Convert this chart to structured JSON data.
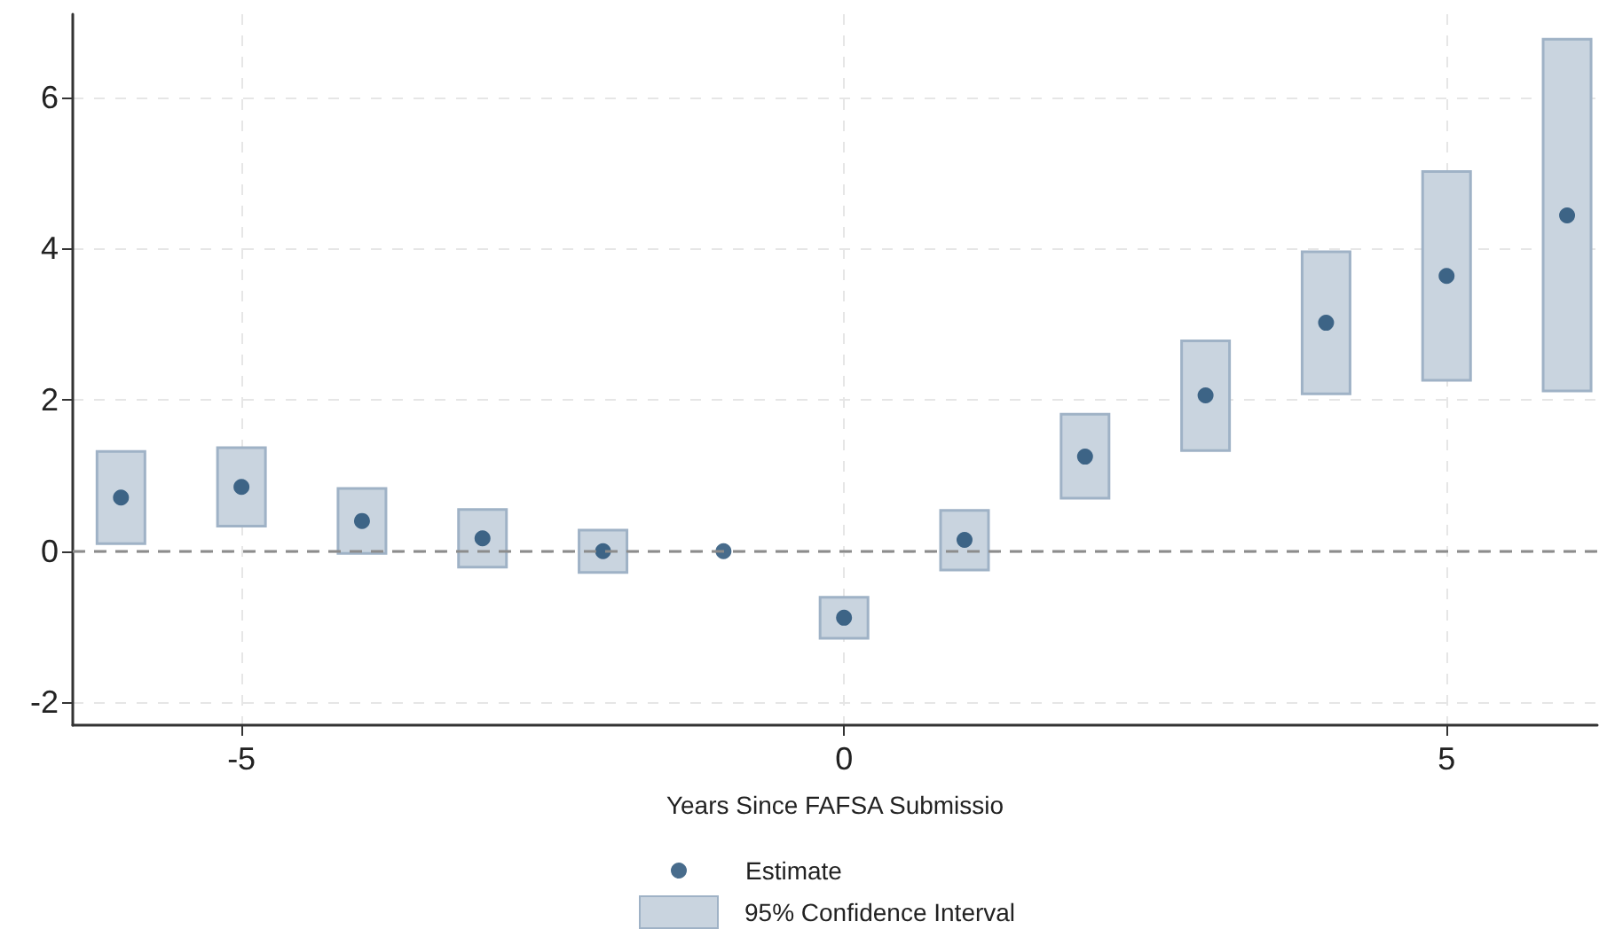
{
  "chart_data": {
    "type": "scatter",
    "xlabel": "Years Since FAFSA Submissio",
    "xlim": [
      -6.4,
      6.25
    ],
    "xticks": [
      -5,
      0,
      5
    ],
    "ylim": [
      -2.3,
      7.1
    ],
    "yticks": [
      -2,
      0,
      2,
      4,
      6
    ],
    "grid": true,
    "legend": "bottom",
    "marker": "circle",
    "ref_lines": [
      {
        "axis": "y",
        "value": 0,
        "color": "#8c8c8c",
        "line_style": "dashed"
      }
    ],
    "series": [
      {
        "name": "Estimate",
        "color": "#1a476f",
        "x": [
          -6,
          -5,
          -4,
          -3,
          -2,
          -1,
          0,
          1,
          2,
          3,
          4,
          5,
          6
        ],
        "values": [
          0.71,
          0.85,
          0.4,
          0.17,
          0,
          0,
          -0.88,
          0.15,
          1.25,
          2.06,
          3.02,
          3.64,
          4.44
        ]
      },
      {
        "type": "bar",
        "name": "95% Confidence Interval",
        "color": "#c9d4df",
        "x": [
          -6,
          -5,
          -4,
          -3,
          -2,
          -1,
          0,
          1,
          2,
          3,
          4,
          5,
          6
        ],
        "base": [
          0.1,
          0.33,
          -0.03,
          -0.21,
          -0.28,
          null,
          -1.15,
          -0.25,
          0.7,
          1.33,
          2.08,
          2.26,
          2.12
        ],
        "values": [
          1.22,
          1.04,
          0.86,
          0.76,
          0.56,
          null,
          0.54,
          0.79,
          1.11,
          1.45,
          1.88,
          2.76,
          4.65
        ]
      }
    ]
  }
}
